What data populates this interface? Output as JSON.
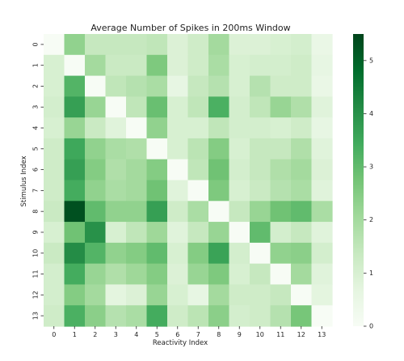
{
  "chart_data": {
    "type": "heatmap",
    "title": "Average Number of Spikes in 200ms Window",
    "xlabel": "Reactivity Index",
    "ylabel": "Stimulus Index",
    "x_categories": [
      "0",
      "1",
      "2",
      "3",
      "4",
      "5",
      "6",
      "7",
      "8",
      "9",
      "10",
      "11",
      "12",
      "13"
    ],
    "y_categories": [
      "0",
      "1",
      "2",
      "3",
      "4",
      "5",
      "6",
      "7",
      "8",
      "9",
      "10",
      "11",
      "12",
      "13"
    ],
    "values": [
      [
        0.0,
        2.3,
        1.4,
        1.4,
        1.4,
        1.5,
        0.9,
        1.2,
        2.0,
        0.9,
        0.9,
        1.0,
        1.1,
        0.5
      ],
      [
        1.0,
        0.0,
        2.0,
        1.3,
        1.3,
        2.6,
        0.9,
        1.2,
        1.9,
        1.0,
        1.1,
        1.1,
        1.2,
        0.6
      ],
      [
        1.0,
        3.2,
        0.0,
        1.5,
        1.7,
        1.9,
        0.6,
        1.4,
        1.7,
        1.0,
        1.7,
        1.2,
        1.2,
        0.5
      ],
      [
        1.1,
        3.7,
        2.2,
        0.0,
        1.5,
        2.9,
        1.0,
        1.5,
        3.3,
        1.1,
        1.5,
        2.2,
        1.8,
        0.8
      ],
      [
        1.0,
        2.2,
        1.3,
        0.8,
        0.0,
        2.3,
        1.0,
        1.0,
        1.5,
        1.1,
        1.1,
        1.0,
        1.2,
        0.6
      ],
      [
        1.2,
        3.5,
        2.3,
        1.9,
        1.8,
        0.0,
        1.0,
        1.6,
        2.5,
        1.0,
        1.4,
        1.4,
        1.8,
        0.8
      ],
      [
        1.2,
        3.7,
        2.5,
        1.8,
        2.0,
        2.5,
        0.0,
        1.5,
        2.8,
        1.1,
        1.4,
        1.8,
        2.0,
        0.9
      ],
      [
        1.2,
        3.4,
        2.3,
        1.9,
        2.0,
        2.8,
        0.8,
        0.0,
        2.6,
        1.0,
        1.3,
        1.7,
        1.9,
        0.8
      ],
      [
        1.3,
        5.3,
        3.0,
        2.3,
        2.3,
        3.7,
        1.2,
        1.9,
        0.0,
        1.4,
        2.2,
        2.8,
        3.0,
        1.9
      ],
      [
        1.0,
        2.8,
        4.0,
        1.0,
        1.5,
        2.1,
        0.8,
        1.4,
        2.2,
        0.0,
        3.0,
        1.1,
        1.4,
        0.8
      ],
      [
        1.3,
        4.1,
        3.2,
        2.3,
        2.5,
        3.0,
        1.0,
        2.5,
        3.6,
        1.1,
        0.0,
        2.3,
        2.4,
        1.1
      ],
      [
        1.1,
        3.4,
        2.2,
        1.8,
        2.1,
        2.5,
        0.9,
        2.2,
        2.6,
        1.0,
        1.4,
        0.0,
        2.0,
        0.8
      ],
      [
        1.1,
        2.5,
        2.0,
        0.7,
        0.9,
        2.2,
        1.0,
        0.6,
        2.0,
        1.2,
        1.2,
        1.4,
        0.0,
        0.7
      ],
      [
        1.2,
        3.3,
        2.4,
        1.7,
        1.9,
        3.4,
        1.2,
        1.6,
        2.4,
        1.1,
        1.2,
        1.7,
        2.7,
        0.0
      ]
    ],
    "zlim": [
      0,
      5.5
    ],
    "colorbar_ticks": [
      0,
      1,
      2,
      3,
      4,
      5
    ],
    "colormap": [
      "#f7fcf5",
      "#e5f5e0",
      "#c7e9c0",
      "#a1d99b",
      "#74c476",
      "#41ab5d",
      "#238b45",
      "#006d2c",
      "#00441b"
    ],
    "grid": false,
    "colors": {
      "colormap_low": "#f7fcf5",
      "colormap_high": "#00441b",
      "text": "#222222"
    }
  }
}
